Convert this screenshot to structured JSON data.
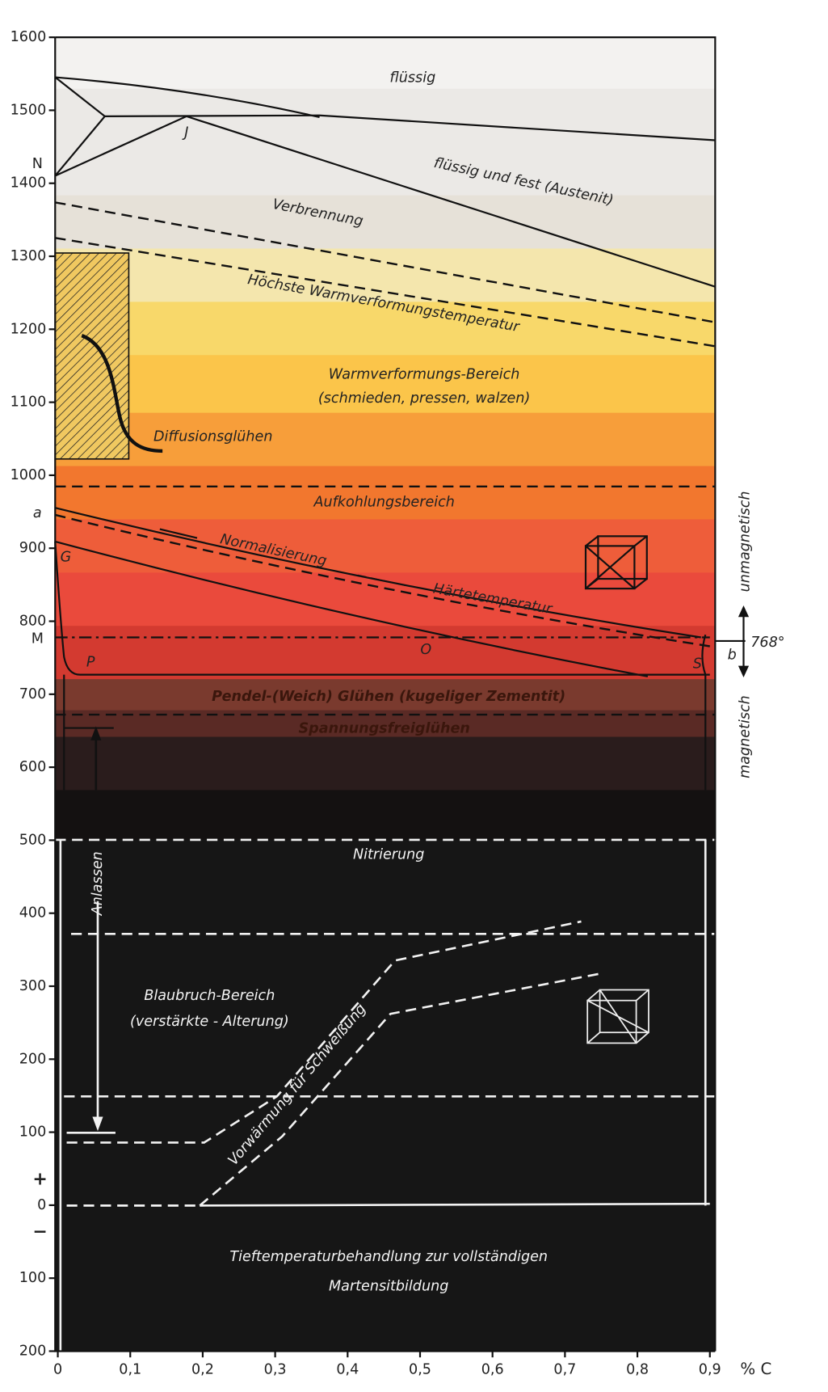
{
  "axes": {
    "ylim": [
      -200,
      1600
    ],
    "yticks": [
      1600,
      1500,
      1400,
      1300,
      1200,
      1100,
      1000,
      900,
      800,
      700,
      600,
      500,
      400,
      300,
      200,
      100,
      0,
      {
        "value": -100,
        "label": "100"
      },
      {
        "value": -200,
        "label": "200"
      }
    ],
    "xlim": [
      0,
      0.9
    ],
    "xticks": [
      0,
      {
        "value": 0.1,
        "label": "0,1"
      },
      {
        "value": 0.2,
        "label": "0,2"
      },
      {
        "value": 0.3,
        "label": "0,3"
      },
      {
        "value": 0.4,
        "label": "0,4"
      },
      {
        "value": 0.5,
        "label": "0,5"
      },
      {
        "value": 0.6,
        "label": "0,6"
      },
      {
        "value": 0.7,
        "label": "0,7"
      },
      {
        "value": 0.8,
        "label": "0,8"
      },
      {
        "value": 0.9,
        "label": "0,9"
      }
    ],
    "x_label": "% C",
    "plus": "+",
    "minus": "−"
  },
  "regions": {
    "liquid": "flüssig",
    "liquid_solid": "flüssig und fest (Austenit)",
    "burning": "Verbrennung",
    "max_forming": "Höchste Warmverformungstemperatur",
    "forming": "Warmverformungs-Bereich",
    "forming_sub": "(schmieden, pressen, walzen)",
    "diffusion": "Diffusionsglühen",
    "carburizing": "Aufkohlungsbereich",
    "normalizing": "Normalisierung",
    "hardening": "Härtetemperatur",
    "soft_annealing": "Pendel-(Weich) Glühen (kugeliger Zementit)",
    "stress_relief": "Spannungsfreiglühen",
    "nitriding": "Nitrierung",
    "tempering": "Anlassen",
    "blue_brittle": "Blaubruch-Bereich",
    "blue_brittle_sub": "(verstärkte - Alterung)",
    "preheating": "Vorwärmung für Schweißung",
    "cryo": "Tieftemperaturbehandlung zur vollständigen",
    "cryo_sub": "Martensitbildung",
    "nonmagnetic": "unmagnetisch",
    "magnetic": "magnetisch",
    "curie": "768°"
  },
  "points": {
    "N": "N",
    "J": "J",
    "a": "a",
    "G": "G",
    "M": "M",
    "P": "P",
    "O": "O",
    "S": "S",
    "b": "b"
  }
}
